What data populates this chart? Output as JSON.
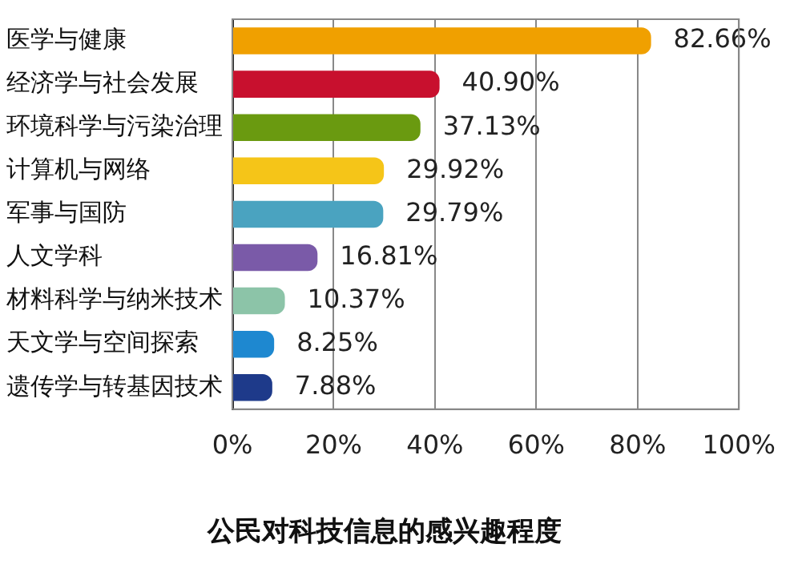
{
  "chart_data": {
    "type": "bar",
    "orientation": "horizontal",
    "title": "公民对科技信息的感兴趣程度",
    "categories": [
      "医学与健康",
      "经济学与社会发展",
      "环境科学与污染治理",
      "计算机与网络",
      "军事与国防",
      "人文学科",
      "材料科学与纳米技术",
      "天文学与空间探索",
      "遗传学与转基因技术"
    ],
    "values": [
      82.66,
      40.9,
      37.13,
      29.92,
      29.79,
      16.81,
      10.37,
      8.25,
      7.88
    ],
    "colors": [
      "#f0a000",
      "#c8102e",
      "#6a9a10",
      "#f5c518",
      "#4aa3c0",
      "#7a5aa8",
      "#8cc4a8",
      "#1e88d0",
      "#1e3a8a"
    ],
    "value_labels": [
      "82.66%",
      "40.90%",
      "37.13%",
      "29.92%",
      "29.79%",
      "16.81%",
      "10.37%",
      "8.25%",
      "7.88%"
    ],
    "xlim": [
      0,
      100
    ],
    "xticks": [
      {
        "value": 0,
        "label": "0%"
      },
      {
        "value": 20,
        "label": "20%"
      },
      {
        "value": 40,
        "label": "40%"
      },
      {
        "value": 60,
        "label": "60%"
      },
      {
        "value": 80,
        "label": "80%"
      },
      {
        "value": 100,
        "label": "100%"
      }
    ],
    "grid": "x"
  }
}
